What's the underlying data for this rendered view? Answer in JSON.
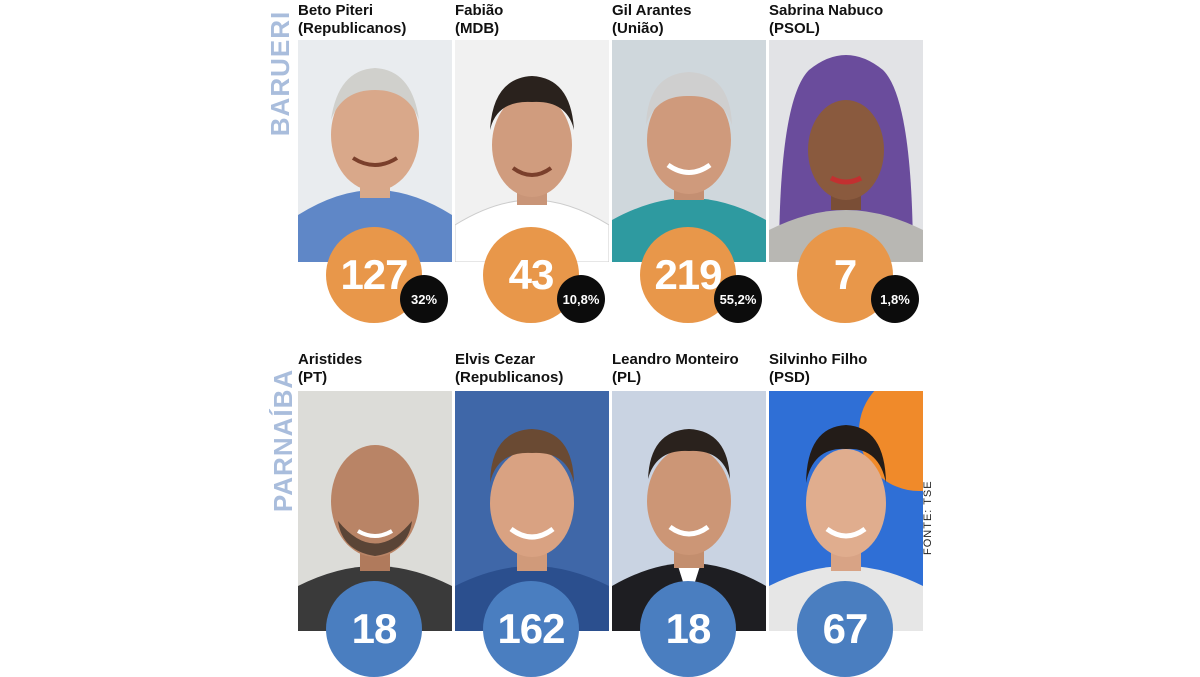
{
  "barueri": {
    "label": "BARUERI",
    "circle_color": "#e8974a",
    "candidates": [
      {
        "name": "Beto Piteri",
        "party": "(Republicanos)",
        "votes": "127",
        "percent": "32%"
      },
      {
        "name": "Fabião",
        "party": "(MDB)",
        "votes": "43",
        "percent": "10,8%"
      },
      {
        "name": "Gil Arantes",
        "party": "(União)",
        "votes": "219",
        "percent": "55,2%"
      },
      {
        "name": "Sabrina Nabuco",
        "party": "(PSOL)",
        "votes": "7",
        "percent": "1,8%"
      }
    ]
  },
  "parnaiba": {
    "label": "PARNAÍBA",
    "circle_color": "#4a7ec0",
    "candidates": [
      {
        "name": "Aristides",
        "party": "(PT)",
        "votes": "18"
      },
      {
        "name": "Elvis Cezar",
        "party": "(Republicanos)",
        "votes": "162"
      },
      {
        "name": "Leandro Monteiro",
        "party": "(PL)",
        "votes": "18"
      },
      {
        "name": "Silvinho Filho",
        "party": "(PSD)",
        "votes": "67"
      }
    ]
  },
  "source": "FONTE: TSE"
}
